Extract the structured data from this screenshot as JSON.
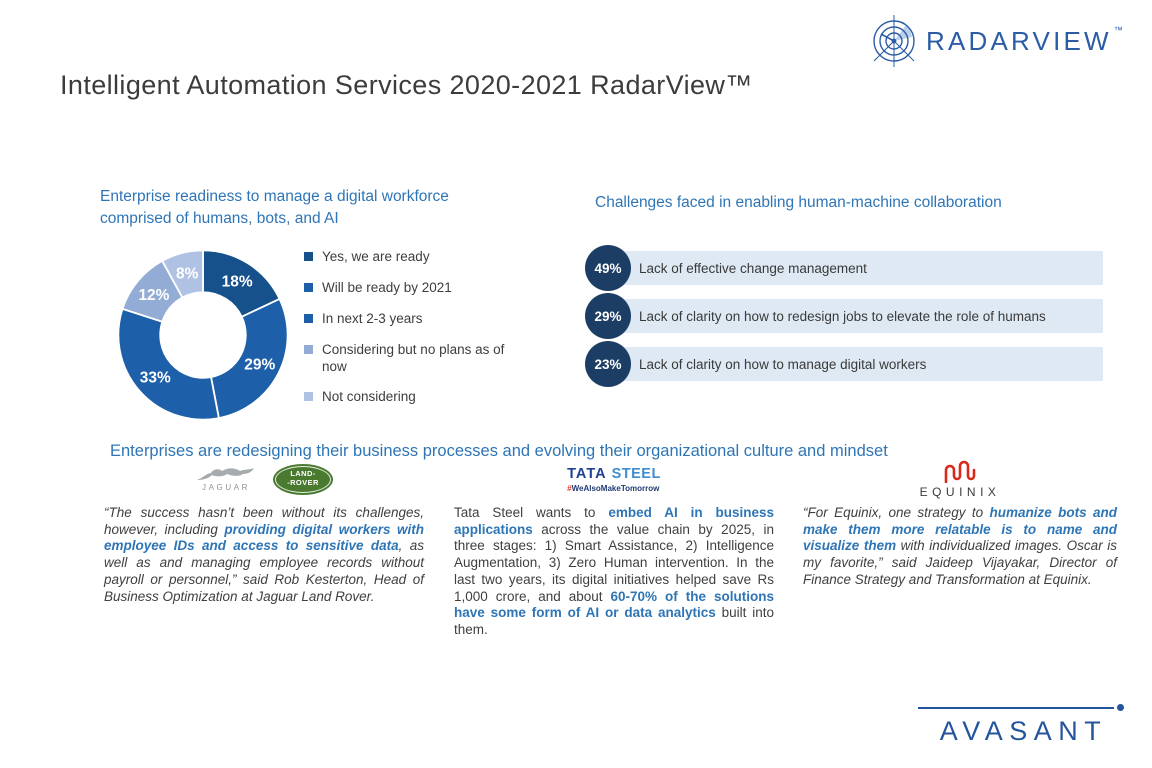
{
  "title": "Intelligent Automation Services 2020-2021 RadarView™",
  "brand": {
    "radarview_wordmark": "RADARVIEW",
    "radarview_tm": "™",
    "avasant_wordmark": "AVASANT",
    "brand_blue": "#2B5CA5",
    "avasant_blue": "#24549C"
  },
  "chart_data": [
    {
      "type": "pie",
      "subtype": "donut",
      "title": "Enterprise readiness to manage a digital workforce comprised of humans, bots, and AI",
      "start_angle": "top",
      "direction": "clockwise",
      "hole": 0.5,
      "legend_position": "right",
      "labels": "inside-percent",
      "slices": [
        {
          "label": "Yes, we are ready",
          "value": 18,
          "display": "18%",
          "color": "#17518C"
        },
        {
          "label": "Will be ready by 2021",
          "value": 29,
          "display": "29%",
          "color": "#1D5FA8"
        },
        {
          "label": "In next 2-3 years",
          "value": 33,
          "display": "33%",
          "color": "#1D5FA8"
        },
        {
          "label": "Considering but no plans as of now",
          "value": 12,
          "display": "12%",
          "color": "#93ACD6"
        },
        {
          "label": "Not considering",
          "value": 8,
          "display": "8%",
          "color": "#AFC2E4"
        }
      ]
    },
    {
      "type": "bar",
      "orientation": "horizontal",
      "title": "Challenges faced in enabling human-machine collaboration",
      "categories": [
        "Lack of effective change management",
        "Lack of clarity on how to redesign jobs to elevate the role of humans",
        "Lack of clarity on how to manage digital workers"
      ],
      "values": [
        49,
        29,
        23
      ],
      "value_labels": [
        "49%",
        "29%",
        "23%"
      ],
      "badge_color": "#1D3E64",
      "bar_color": "#DEE9F4"
    }
  ],
  "stories": {
    "title": "Enterprises are redesigning their business processes and evolving their organizational culture and mindset",
    "columns": [
      {
        "company": "Jaguar Land Rover",
        "logos": {
          "jaguar_wordmark": "JAGUAR",
          "landrover_line1": "LAND-",
          "landrover_line2": "-ROVER",
          "landrover_green": "#4A7A30"
        },
        "segments": [
          {
            "text": "“The success hasn’t been without its challenges, however, including "
          },
          {
            "text": "providing digital workers with employee IDs and access to sensitive data",
            "em": true
          },
          {
            "text": ", as well as and managing employee records without payroll or personnel,” said Rob Kesterton, Head of Business Optimization at Jaguar Land Rover."
          }
        ]
      },
      {
        "company": "Tata Steel",
        "logos": {
          "tata_wordmark": "TATA",
          "steel_wordmark": "STEEL",
          "hashtag_symbol": "#",
          "hashtag_text": "WeAlsoMakeTomorrow"
        },
        "segments": [
          {
            "text": "Tata Steel wants to "
          },
          {
            "text": "embed AI in business applications",
            "em": true
          },
          {
            "text": " across the value chain by 2025, in three stages: 1) Smart Assistance, 2) Intelligence Augmentation, 3) Zero Human intervention. In the last two years, its digital initiatives helped save Rs 1,000 crore, and about "
          },
          {
            "text": "60-70% of the solutions have some form of AI or data analytics",
            "em": true
          },
          {
            "text": " built into them."
          }
        ]
      },
      {
        "company": "Equinix",
        "logos": {
          "equinix_wordmark": "EQUINIX",
          "equinix_red": "#DA291C"
        },
        "segments": [
          {
            "text": "“For Equinix, one strategy to "
          },
          {
            "text": "humanize bots and make them more relatable is to name and visualize them",
            "em": true
          },
          {
            "text": " with individualized images. Oscar is my favorite,” said Jaideep Vijayakar, Director of Finance Strategy and Transformation at Equinix."
          }
        ]
      }
    ]
  },
  "colors": {
    "heading_blue": "#2E75B6",
    "body_text": "#3F3F3F",
    "title_text": "#3C3C3C"
  }
}
